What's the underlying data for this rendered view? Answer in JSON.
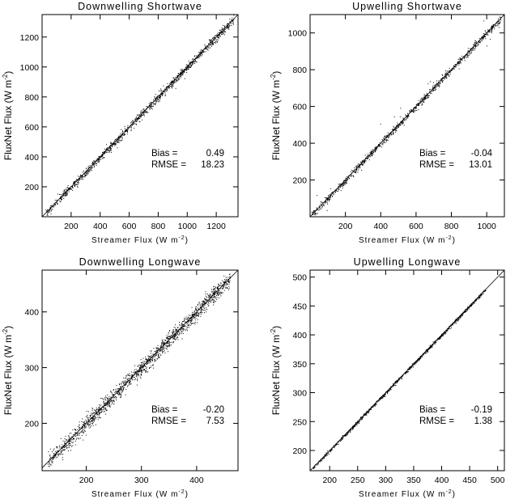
{
  "chart_data": [
    {
      "type": "scatter",
      "title": "Downwelling Shortwave",
      "xlabel": "Streamer Flux (W m",
      "ylabel": "FluxNet Flux (W m",
      "unit_exponent": "-2",
      "xlim": [
        0,
        1350
      ],
      "ylim": [
        0,
        1350
      ],
      "xticks": [
        200,
        400,
        600,
        800,
        1000,
        1200
      ],
      "yticks": [
        200,
        400,
        600,
        800,
        1000,
        1200
      ],
      "stats": [
        {
          "label": "Bias  =",
          "value": "0.49"
        },
        {
          "label": "RMSE  =",
          "value": "18.23"
        }
      ],
      "one_to_one_line": true,
      "cloud": {
        "count": 1200,
        "x_range": [
          20,
          1320
        ],
        "spread": 14
      },
      "series": [
        {
          "x": [
            20,
            200,
            400,
            600,
            800,
            1000,
            1200,
            1320
          ],
          "y": [
            20,
            200,
            400,
            600,
            800,
            1000,
            1200,
            1320
          ]
        }
      ]
    },
    {
      "type": "scatter",
      "title": "Upwelling Shortwave",
      "xlabel": "Streamer Flux (W m",
      "ylabel": "FluxNet Flux (W m",
      "unit_exponent": "-2",
      "xlim": [
        0,
        1100
      ],
      "ylim": [
        0,
        1100
      ],
      "xticks": [
        200,
        400,
        600,
        800,
        1000
      ],
      "yticks": [
        200,
        400,
        600,
        800,
        1000
      ],
      "stats": [
        {
          "label": "Bias  =",
          "value": "-0.04"
        },
        {
          "label": "RMSE  =",
          "value": "13.01"
        }
      ],
      "one_to_one_line": true,
      "cloud": {
        "count": 1000,
        "x_range": [
          5,
          1080
        ],
        "spread": 10
      },
      "series": [
        {
          "x": [
            5,
            100,
            200,
            300,
            400,
            500,
            600,
            700,
            800,
            900,
            1000,
            1080
          ],
          "y": [
            5,
            100,
            200,
            300,
            400,
            500,
            600,
            700,
            800,
            900,
            1000,
            1080
          ]
        }
      ]
    },
    {
      "type": "scatter",
      "title": "Downwelling Longwave",
      "xlabel": "Streamer Flux (W m",
      "ylabel": "FluxNet Flux (W m",
      "unit_exponent": "-2",
      "xlim": [
        120,
        475
      ],
      "ylim": [
        115,
        475
      ],
      "xticks": [
        200,
        300,
        400
      ],
      "yticks": [
        200,
        300,
        400
      ],
      "stats": [
        {
          "label": "Bias  =",
          "value": "-0.20"
        },
        {
          "label": "RMSE  =",
          "value": "7.53"
        }
      ],
      "one_to_one_line": true,
      "cloud": {
        "count": 1600,
        "x_range": [
          130,
          460
        ],
        "spread": 7
      },
      "series": [
        {
          "x": [
            130,
            200,
            250,
            300,
            350,
            400,
            460
          ],
          "y": [
            130,
            200,
            250,
            300,
            350,
            400,
            460
          ]
        }
      ]
    },
    {
      "type": "scatter",
      "title": "Upwelling Longwave",
      "xlabel": "Streamer Flux (W m",
      "ylabel": "FluxNet Flux (W m",
      "unit_exponent": "-2",
      "xlim": [
        165,
        512
      ],
      "ylim": [
        165,
        512
      ],
      "xticks": [
        200,
        250,
        300,
        350,
        400,
        450,
        500
      ],
      "yticks": [
        200,
        250,
        300,
        350,
        400,
        450,
        500
      ],
      "stats": [
        {
          "label": "Bias  =",
          "value": "-0.19"
        },
        {
          "label": "RMSE  =",
          "value": "1.38"
        }
      ],
      "one_to_one_line": true,
      "cloud": {
        "count": 900,
        "x_range": [
          170,
          478
        ],
        "spread": 1.4
      },
      "series": [
        {
          "x": [
            170,
            250,
            350,
            450,
            478
          ],
          "y": [
            170,
            250,
            350,
            450,
            478
          ]
        }
      ]
    }
  ]
}
